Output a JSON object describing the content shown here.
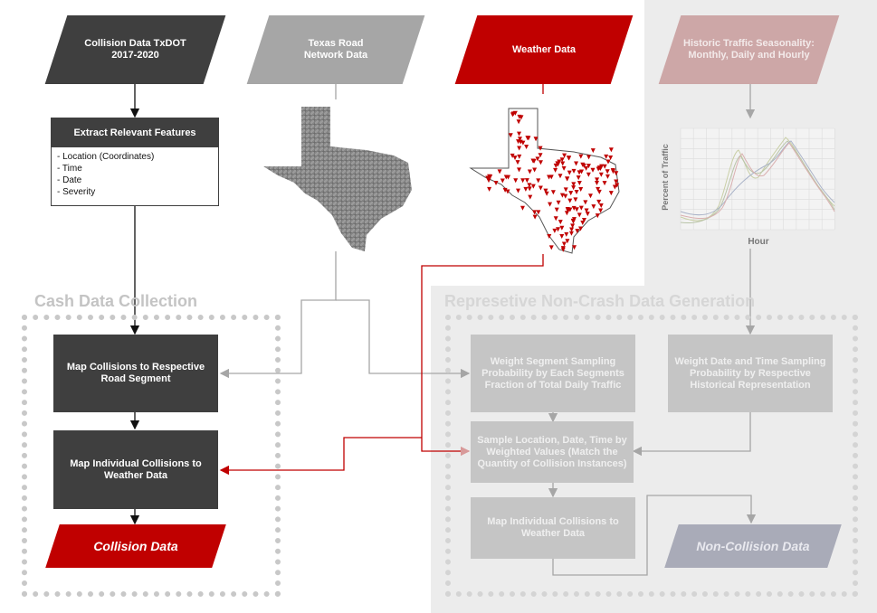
{
  "inputs": {
    "collision": "Collision Data TxDOT\n2017-2020",
    "road": "Texas Road\nNetwork Data",
    "weather": "Weather Data",
    "seasonality": "Historic Traffic Seasonality:\nMonthly, Daily and Hourly"
  },
  "features": {
    "header": "Extract Relevant Features",
    "items": [
      "- Location (Coordinates)",
      "- Time",
      "- Date",
      "- Severity"
    ]
  },
  "crash_section": {
    "title": "Cash Data Collection",
    "map_segment": "Map Collisions to Respective Road Segment",
    "map_weather": "Map Individual Collisions to Weather Data",
    "output": "Collision Data"
  },
  "noncrash_section": {
    "title": "Represetive Non-Crash Data Generation",
    "weight_segment": "Weight Segment Sampling Probability by Each Segments Fraction of Total Daily Traffic",
    "weight_time": "Weight Date and Time Sampling Probability by Respective Historical Representation",
    "sample": "Sample Location, Date, Time by Weighted Values (Match the Quantity of Collision Instances)",
    "map_weather": "Map Individual Collisions to Weather Data",
    "output": "Non-Collision Data"
  },
  "traffic_chart": {
    "ylabel": "Percent of Traffic",
    "xlabel": "Hour"
  },
  "colors": {
    "dark": "#3f3f3f",
    "red": "#c00000",
    "grey": "#a6a6a6",
    "faded_red": "#cda7a7",
    "slate": "#a9abb8"
  }
}
